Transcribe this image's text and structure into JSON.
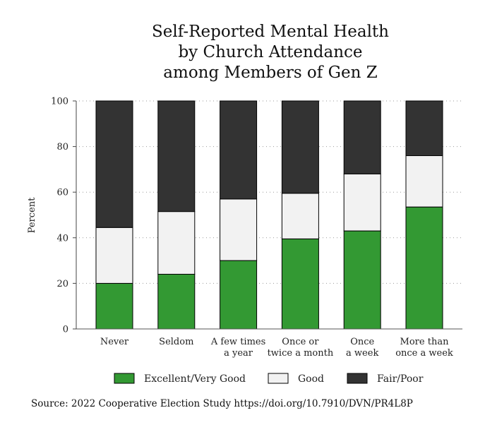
{
  "chart_data": {
    "type": "bar",
    "stacked": true,
    "title_lines": [
      "Self-Reported Mental Health",
      "by Church Attendance",
      "among Members of Gen Z"
    ],
    "ylabel": "Percent",
    "xlabel": "",
    "ylim": [
      0,
      100
    ],
    "yticks": [
      0,
      20,
      40,
      60,
      80,
      100
    ],
    "grid": true,
    "categories": [
      [
        "Never"
      ],
      [
        "Seldom"
      ],
      [
        "A few times",
        "a year"
      ],
      [
        "Once or",
        "twice a month"
      ],
      [
        "Once",
        "a week"
      ],
      [
        "More than",
        "once a week"
      ]
    ],
    "series": [
      {
        "name": "Excellent/Very Good",
        "color": "#339933",
        "values": [
          20,
          24,
          30,
          39.5,
          43,
          53.5
        ]
      },
      {
        "name": "Good",
        "color": "#f2f2f2",
        "values": [
          24.5,
          27.5,
          27,
          20,
          25,
          22.5
        ]
      },
      {
        "name": "Fair/Poor",
        "color": "#333333",
        "values": [
          55.5,
          48.5,
          43,
          40.5,
          32,
          24
        ]
      }
    ],
    "legend_position": "bottom"
  },
  "source_text": "Source: 2022 Cooperative Election Study https://doi.org/10.7910/DVN/PR4L8P"
}
